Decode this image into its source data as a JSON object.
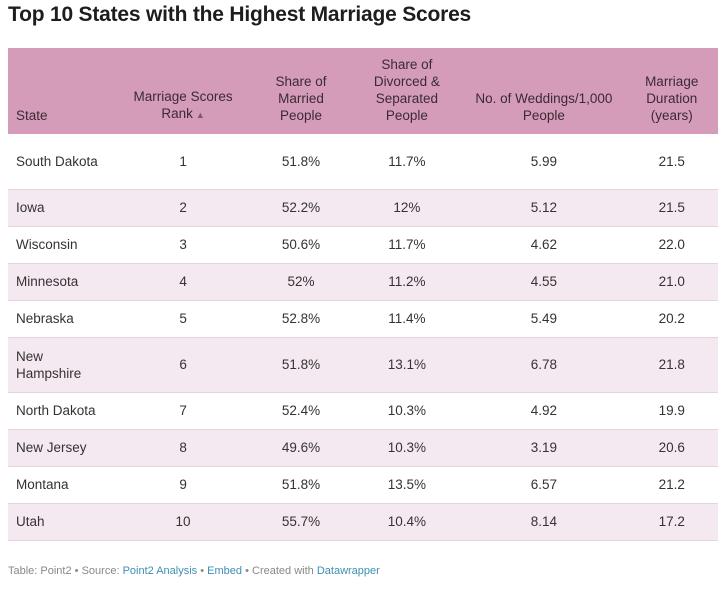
{
  "title": "Top 10 States with the Highest Marriage Scores",
  "columns": {
    "state": "State",
    "rank": "Marriage Scores Rank",
    "married": "Share of Married People",
    "divorced": "Share of Divorced & Separated People",
    "weddings": "No. of Weddings/1,000 People",
    "duration": "Marriage Duration (years)"
  },
  "sort_indicator": "▲",
  "footer": {
    "table_label": "Table: Point2",
    "source_label": "Source:",
    "source_link": "Point2 Analysis",
    "embed": "Embed",
    "created_label": "Created with",
    "created_link": "Datawrapper",
    "sep": "•"
  },
  "chart_data": {
    "type": "table",
    "title": "Top 10 States with the Highest Marriage Scores",
    "columns": [
      "State",
      "Marriage Scores Rank",
      "Share of Married People",
      "Share of Divorced & Separated People",
      "No. of Weddings/1,000 People",
      "Marriage Duration (years)"
    ],
    "rows": [
      {
        "state": "South Dakota",
        "rank": "1",
        "married": "51.8%",
        "divorced": "11.7%",
        "weddings": "5.99",
        "duration": "21.5"
      },
      {
        "state": "Iowa",
        "rank": "2",
        "married": "52.2%",
        "divorced": "12%",
        "weddings": "5.12",
        "duration": "21.5"
      },
      {
        "state": "Wisconsin",
        "rank": "3",
        "married": "50.6%",
        "divorced": "11.7%",
        "weddings": "4.62",
        "duration": "22.0"
      },
      {
        "state": "Minnesota",
        "rank": "4",
        "married": "52%",
        "divorced": "11.2%",
        "weddings": "4.55",
        "duration": "21.0"
      },
      {
        "state": "Nebraska",
        "rank": "5",
        "married": "52.8%",
        "divorced": "11.4%",
        "weddings": "5.49",
        "duration": "20.2"
      },
      {
        "state": "New Hampshire",
        "rank": "6",
        "married": "51.8%",
        "divorced": "13.1%",
        "weddings": "6.78",
        "duration": "21.8"
      },
      {
        "state": "North Dakota",
        "rank": "7",
        "married": "52.4%",
        "divorced": "10.3%",
        "weddings": "4.92",
        "duration": "19.9"
      },
      {
        "state": "New Jersey",
        "rank": "8",
        "married": "49.6%",
        "divorced": "10.3%",
        "weddings": "3.19",
        "duration": "20.6"
      },
      {
        "state": "Montana",
        "rank": "9",
        "married": "51.8%",
        "divorced": "13.5%",
        "weddings": "6.57",
        "duration": "21.2"
      },
      {
        "state": "Utah",
        "rank": "10",
        "married": "55.7%",
        "divorced": "10.4%",
        "weddings": "8.14",
        "duration": "17.2"
      }
    ]
  }
}
